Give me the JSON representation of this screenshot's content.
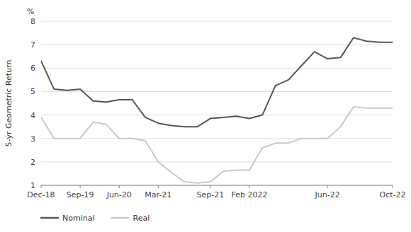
{
  "chart_data": {
    "type": "line",
    "x": [
      0,
      1,
      2,
      3,
      4,
      5,
      6,
      7,
      8,
      9,
      10,
      11,
      12,
      13,
      14,
      15,
      16,
      17,
      18,
      19,
      20,
      21,
      22,
      23,
      24,
      25,
      26,
      27
    ],
    "series": [
      {
        "name": "Nominal",
        "color": "#555555",
        "values": [
          6.3,
          5.1,
          5.05,
          5.1,
          4.6,
          4.55,
          4.65,
          4.65,
          3.9,
          3.65,
          3.55,
          3.5,
          3.5,
          3.85,
          3.9,
          3.95,
          3.85,
          4.0,
          5.25,
          5.5,
          6.1,
          6.7,
          6.4,
          6.45,
          7.3,
          7.15,
          7.1,
          7.1
        ]
      },
      {
        "name": "Real",
        "color": "#c8c8c8",
        "values": [
          3.9,
          3.0,
          3.0,
          3.0,
          3.7,
          3.6,
          3.0,
          3.0,
          2.9,
          2.0,
          1.55,
          1.15,
          1.1,
          1.15,
          1.6,
          1.65,
          1.65,
          2.6,
          2.8,
          2.8,
          3.0,
          3.0,
          3.0,
          3.5,
          4.35,
          4.3,
          4.3,
          4.3
        ]
      }
    ],
    "xlim": [
      0,
      27
    ],
    "xticks": [
      {
        "value": 0,
        "label": "Dec-18"
      },
      {
        "value": 3,
        "label": "Sep-19"
      },
      {
        "value": 6,
        "label": "Jun-20"
      },
      {
        "value": 9,
        "label": "Mar-21"
      },
      {
        "value": 13,
        "label": "Sep-21"
      },
      {
        "value": 16,
        "label": "Feb 2022"
      },
      {
        "value": 22,
        "label": "Jun-22"
      },
      {
        "value": 27,
        "label": "Oct-22"
      }
    ],
    "ylim": [
      1,
      8
    ],
    "yticks": [
      1,
      2,
      3,
      4,
      5,
      6,
      7,
      8
    ],
    "y_label": "5-yr Geometric Return",
    "annotations": [
      "%"
    ],
    "grid": true,
    "legend": "bottom"
  }
}
